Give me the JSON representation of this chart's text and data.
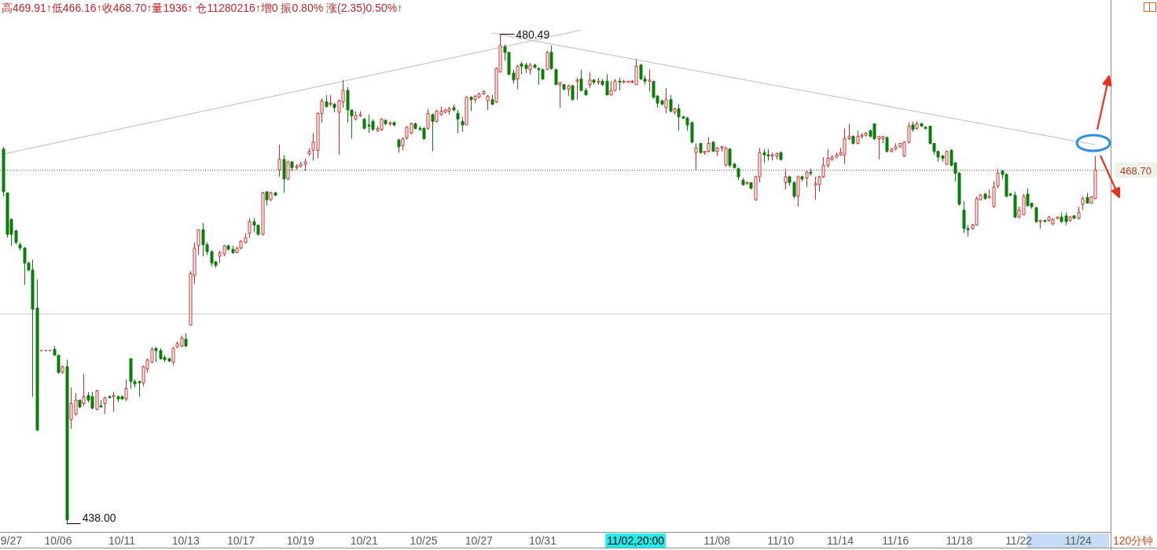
{
  "chart_data": {
    "type": "candlestick",
    "title": "高469.91↑低466.16↑收468.70↑量1936↑ 仓11280216↑增0 振0.80% 涨(2.35)0.50%↑",
    "categories": [
      null,
      null,
      "9/27",
      null,
      null,
      null,
      null,
      null,
      null,
      null,
      null,
      null,
      null,
      "10/06",
      null,
      null,
      null,
      null,
      null,
      null,
      null,
      null,
      null,
      null,
      null,
      null,
      null,
      null,
      "10/11",
      null,
      null,
      null,
      null,
      null,
      null,
      null,
      null,
      null,
      null,
      null,
      null,
      null,
      null,
      "10/13",
      null,
      null,
      null,
      null,
      null,
      null,
      null,
      null,
      null,
      null,
      null,
      null,
      "10/17",
      null,
      null,
      null,
      null,
      null,
      null,
      null,
      null,
      null,
      null,
      null,
      null,
      null,
      "10/19",
      null,
      null,
      null,
      null,
      null,
      null,
      null,
      null,
      null,
      null,
      null,
      null,
      null,
      null,
      "10/21",
      null,
      null,
      null,
      null,
      null,
      null,
      null,
      null,
      null,
      null,
      null,
      null,
      null,
      "10/25",
      null,
      null,
      null,
      null,
      null,
      null,
      null,
      null,
      null,
      null,
      null,
      null,
      "10/27",
      null,
      null,
      null,
      null,
      null,
      null,
      null,
      null,
      null,
      null,
      null,
      null,
      null,
      null,
      "10/31",
      null,
      null,
      null,
      null,
      null,
      null,
      null,
      null,
      null,
      null,
      null,
      null,
      null,
      null,
      null,
      null,
      null,
      null,
      null,
      null,
      null,
      null,
      null,
      null,
      null,
      null,
      null,
      null,
      null,
      null,
      null,
      null,
      null,
      null,
      null,
      null,
      null,
      null,
      null,
      null,
      "11/08",
      null,
      null,
      null,
      null,
      null,
      null,
      null,
      null,
      null,
      null,
      null,
      null,
      null,
      null,
      "11/10",
      null,
      null,
      null,
      null,
      null,
      null,
      null,
      null,
      null,
      null,
      null,
      null,
      null,
      "11/14",
      null,
      null,
      null,
      null,
      null,
      null,
      null,
      null,
      null,
      null,
      null,
      null,
      "11/16",
      null,
      null,
      null,
      null,
      null,
      null,
      null,
      null,
      null,
      null,
      null,
      null,
      null,
      null,
      "11/18",
      null,
      null,
      null,
      null,
      null,
      null,
      null,
      null,
      null,
      null,
      null,
      null,
      null,
      "11/22",
      null,
      null,
      null,
      null,
      null,
      null,
      null,
      null,
      null,
      null,
      null,
      null,
      null,
      "11/24",
      null,
      null,
      null,
      null
    ],
    "ohlc": [
      [
        470.5,
        470.7,
        466.4,
        466.8
      ],
      [
        466.7,
        466.7,
        462.8,
        463.1
      ],
      [
        464.4,
        464.5,
        462.1,
        463.1
      ],
      [
        463.4,
        463.5,
        462.2,
        462.4
      ],
      [
        462.2,
        462.4,
        461.7,
        461.9
      ],
      [
        461.9,
        462.0,
        458.7,
        460.6
      ],
      [
        460.6,
        460.7,
        459.9,
        460.0
      ],
      [
        460.0,
        460.9,
        449.0,
        456.6
      ],
      [
        456.7,
        459.2,
        446.0,
        446.1
      ],
      [
        453.0,
        453.0,
        453.0,
        453.0
      ],
      [
        453.0,
        453.0,
        453.0,
        453.0
      ],
      [
        453.0,
        453.0,
        453.0,
        453.0
      ],
      [
        453.1,
        453.4,
        452.6,
        452.6
      ],
      [
        452.6,
        452.6,
        451.0,
        451.1
      ],
      [
        451.1,
        451.7,
        451.0,
        451.6
      ],
      [
        451.6,
        452.2,
        438.0,
        438.3
      ],
      [
        447.0,
        449.8,
        446.2,
        448.4
      ],
      [
        447.5,
        449.3,
        447.3,
        448.7
      ],
      [
        448.7,
        448.7,
        448.0,
        448.1
      ],
      [
        448.4,
        451.0,
        448.2,
        449.0
      ],
      [
        449.1,
        449.4,
        448.5,
        448.7
      ],
      [
        449.0,
        449.4,
        447.9,
        448.0
      ],
      [
        447.9,
        449.6,
        447.8,
        449.5
      ],
      [
        448.2,
        448.7,
        448.1,
        448.1
      ],
      [
        448.4,
        449.0,
        447.5,
        448.9
      ],
      [
        449.0,
        449.1,
        448.9,
        448.9
      ],
      [
        449.0,
        449.4,
        447.7,
        449.1
      ],
      [
        449.0,
        449.1,
        448.5,
        448.8
      ],
      [
        449.0,
        449.1,
        448.7,
        448.8
      ],
      [
        448.8,
        450.5,
        448.6,
        449.7
      ],
      [
        452.3,
        452.3,
        449.7,
        450.3
      ],
      [
        450.3,
        450.5,
        449.8,
        450.1
      ],
      [
        450.3,
        450.4,
        449.0,
        450.2
      ],
      [
        450.2,
        451.7,
        449.9,
        451.6
      ],
      [
        451.4,
        452.3,
        451.1,
        452.2
      ],
      [
        452.0,
        453.3,
        451.9,
        453.1
      ],
      [
        453.2,
        453.3,
        452.0,
        453.0
      ],
      [
        453.0,
        453.2,
        452.2,
        452.3
      ],
      [
        452.4,
        452.6,
        452.0,
        452.2
      ],
      [
        452.3,
        452.4,
        452.0,
        452.1
      ],
      [
        452.0,
        453.3,
        451.7,
        453.2
      ],
      [
        453.3,
        453.8,
        453.2,
        453.6
      ],
      [
        453.4,
        454.3,
        453.3,
        454.1
      ],
      [
        454.0,
        454.5,
        453.3,
        453.4
      ],
      [
        455.2,
        459.9,
        455.2,
        459.7
      ],
      [
        459.5,
        462.4,
        458.8,
        461.9
      ],
      [
        462.1,
        463.5,
        461.3,
        463.5
      ],
      [
        463.5,
        464.1,
        461.2,
        462.2
      ],
      [
        462.2,
        462.4,
        461.3,
        461.6
      ],
      [
        461.6,
        461.7,
        460.3,
        460.6
      ],
      [
        460.7,
        460.8,
        460.2,
        460.4
      ],
      [
        461.2,
        461.7,
        460.6,
        461.5
      ],
      [
        461.4,
        462.2,
        461.2,
        462.1
      ],
      [
        462.1,
        462.2,
        461.7,
        461.8
      ],
      [
        461.8,
        462.1,
        461.4,
        461.5
      ],
      [
        461.5,
        462.0,
        461.5,
        461.9
      ],
      [
        461.9,
        462.6,
        461.8,
        462.5
      ],
      [
        462.4,
        463.2,
        462.3,
        462.8
      ],
      [
        463.2,
        464.5,
        462.8,
        464.2
      ],
      [
        464.2,
        464.5,
        463.3,
        463.9
      ],
      [
        463.9,
        463.9,
        463.0,
        463.1
      ],
      [
        463.1,
        466.8,
        463.0,
        466.7
      ],
      [
        466.8,
        466.8,
        465.6,
        466.1
      ],
      [
        466.1,
        466.8,
        466.0,
        466.7
      ],
      [
        466.7,
        466.8,
        466.4,
        466.5
      ],
      [
        468.7,
        470.9,
        468.1,
        469.6
      ],
      [
        469.6,
        470.0,
        466.7,
        467.9
      ],
      [
        467.9,
        469.5,
        467.8,
        469.4
      ],
      [
        469.4,
        469.4,
        468.6,
        468.9
      ],
      [
        468.9,
        469.2,
        468.7,
        469.0
      ],
      [
        469.0,
        469.4,
        468.9,
        469.2
      ],
      [
        469.2,
        469.7,
        468.6,
        469.4
      ],
      [
        470.1,
        470.6,
        469.9,
        470.3
      ],
      [
        470.4,
        471.9,
        469.5,
        471.1
      ],
      [
        470.4,
        473.7,
        469.7,
        473.6
      ],
      [
        473.6,
        474.9,
        472.8,
        474.7
      ],
      [
        474.6,
        475.2,
        474.1,
        474.2
      ],
      [
        474.4,
        475.2,
        474.2,
        474.5
      ],
      [
        474.4,
        474.5,
        473.7,
        474.1
      ],
      [
        473.7,
        474.8,
        470.0,
        474.7
      ],
      [
        474.6,
        476.5,
        474.1,
        475.6
      ],
      [
        475.6,
        475.9,
        472.8,
        473.9
      ],
      [
        473.9,
        473.9,
        471.4,
        473.4
      ],
      [
        473.1,
        473.8,
        473.0,
        473.4
      ],
      [
        473.4,
        473.8,
        473.3,
        473.5
      ],
      [
        473.1,
        473.2,
        472.2,
        472.3
      ],
      [
        472.6,
        473.5,
        471.9,
        472.5
      ],
      [
        472.9,
        473.1,
        472.1,
        472.2
      ],
      [
        472.1,
        472.5,
        472.0,
        472.3
      ],
      [
        472.2,
        473.2,
        472.1,
        473.1
      ],
      [
        473.0,
        473.1,
        472.6,
        472.7
      ],
      [
        472.7,
        472.9,
        472.5,
        472.8
      ],
      [
        472.8,
        472.9,
        472.5,
        472.6
      ],
      [
        471.3,
        471.4,
        470.2,
        470.7
      ],
      [
        470.8,
        471.5,
        470.4,
        471.4
      ],
      [
        471.5,
        472.5,
        471.3,
        472.4
      ],
      [
        471.9,
        472.8,
        471.8,
        472.7
      ],
      [
        472.7,
        472.8,
        472.2,
        472.3
      ],
      [
        472.3,
        472.5,
        472.1,
        472.2
      ],
      [
        472.3,
        472.4,
        471.3,
        471.4
      ],
      [
        472.3,
        474.0,
        472.2,
        473.6
      ],
      [
        473.5,
        473.6,
        470.3,
        472.9
      ],
      [
        472.9,
        473.9,
        472.8,
        473.8
      ],
      [
        473.5,
        474.2,
        473.4,
        473.8
      ],
      [
        473.7,
        474.0,
        473.6,
        473.9
      ],
      [
        473.8,
        474.2,
        473.5,
        474.0
      ],
      [
        474.1,
        474.4,
        473.8,
        473.9
      ],
      [
        473.6,
        473.9,
        471.9,
        473.1
      ],
      [
        472.9,
        473.3,
        472.0,
        472.6
      ],
      [
        472.6,
        475.1,
        472.6,
        475.0
      ],
      [
        475.0,
        475.1,
        473.8,
        474.8
      ],
      [
        474.8,
        475.2,
        474.5,
        475.1
      ],
      [
        475.0,
        475.4,
        474.9,
        475.3
      ],
      [
        475.3,
        475.6,
        475.2,
        475.5
      ],
      [
        474.7,
        475.2,
        473.9,
        475.1
      ],
      [
        474.8,
        475.2,
        474.3,
        474.4
      ],
      [
        474.6,
        477.6,
        474.5,
        477.5
      ],
      [
        477.2,
        480.49,
        477.2,
        479.5
      ],
      [
        479.4,
        479.6,
        478.2,
        478.9
      ],
      [
        478.9,
        478.9,
        476.9,
        477.0
      ],
      [
        477.1,
        477.4,
        476.2,
        476.5
      ],
      [
        476.6,
        477.8,
        475.7,
        477.7
      ],
      [
        477.9,
        478.1,
        477.0,
        477.7
      ],
      [
        477.8,
        478.0,
        477.1,
        477.5
      ],
      [
        477.4,
        478.0,
        477.0,
        477.8
      ],
      [
        477.8,
        477.9,
        477.5,
        477.6
      ],
      [
        477.5,
        477.6,
        476.1,
        477.4
      ],
      [
        477.4,
        477.5,
        476.5,
        476.6
      ],
      [
        477.4,
        479.0,
        477.4,
        478.9
      ],
      [
        478.9,
        479.5,
        477.4,
        477.5
      ],
      [
        477.4,
        477.5,
        476.1,
        476.1
      ],
      [
        476.1,
        476.3,
        474.1,
        476.3
      ],
      [
        476.1,
        476.1,
        475.6,
        475.7
      ],
      [
        475.7,
        476.1,
        475.1,
        476.0
      ],
      [
        476.0,
        476.1,
        474.7,
        474.8
      ],
      [
        476.4,
        476.7,
        474.8,
        476.5
      ],
      [
        476.6,
        477.4,
        475.5,
        475.6
      ],
      [
        475.6,
        475.8,
        475.2,
        475.2
      ],
      [
        476.1,
        477.2,
        475.8,
        476.5
      ],
      [
        476.5,
        476.6,
        476.1,
        476.3
      ],
      [
        476.3,
        476.7,
        476.1,
        476.4
      ],
      [
        476.4,
        476.6,
        476.0,
        476.1
      ],
      [
        476.4,
        477.0,
        475.2,
        475.2
      ],
      [
        475.2,
        476.4,
        475.2,
        475.6
      ],
      [
        475.6,
        476.6,
        475.5,
        476.4
      ],
      [
        476.4,
        476.7,
        475.6,
        476.3
      ],
      [
        476.3,
        476.5,
        476.2,
        476.4
      ],
      [
        476.3,
        476.4,
        476.3,
        476.4
      ],
      [
        476.3,
        476.5,
        476.2,
        476.4
      ],
      [
        476.1,
        478.3,
        476.1,
        477.7
      ],
      [
        477.8,
        477.9,
        476.5,
        476.6
      ],
      [
        476.6,
        476.9,
        476.1,
        476.4
      ],
      [
        476.4,
        477.4,
        475.5,
        476.5
      ],
      [
        476.4,
        476.4,
        474.9,
        475.0
      ],
      [
        475.1,
        475.2,
        474.1,
        474.5
      ],
      [
        474.7,
        474.8,
        474.3,
        474.4
      ],
      [
        474.1,
        475.8,
        473.6,
        474.8
      ],
      [
        474.8,
        475.2,
        473.7,
        473.8
      ],
      [
        473.7,
        474.1,
        473.5,
        474.0
      ],
      [
        474.0,
        474.4,
        472.1,
        473.3
      ],
      [
        473.3,
        473.4,
        473.1,
        473.2
      ],
      [
        473.2,
        473.3,
        472.1,
        472.6
      ],
      [
        472.8,
        472.9,
        471.0,
        471.1
      ],
      [
        470.2,
        471.0,
        468.7,
        470.6
      ],
      [
        471.0,
        471.0,
        470.1,
        470.2
      ],
      [
        470.2,
        470.3,
        470.0,
        470.3
      ],
      [
        470.3,
        471.5,
        470.2,
        471.0
      ],
      [
        471.1,
        471.2,
        470.3,
        470.3
      ],
      [
        470.3,
        470.7,
        469.9,
        470.6
      ],
      [
        470.6,
        470.8,
        470.3,
        470.7
      ],
      [
        469.1,
        470.7,
        469.0,
        470.6
      ],
      [
        470.5,
        470.6,
        468.9,
        469.1
      ],
      [
        469.2,
        469.3,
        468.8,
        468.9
      ],
      [
        468.8,
        468.9,
        467.8,
        468.1
      ],
      [
        467.8,
        468.0,
        467.4,
        467.4
      ],
      [
        467.5,
        467.7,
        467.4,
        467.6
      ],
      [
        467.6,
        467.6,
        467.0,
        467.1
      ],
      [
        466.1,
        468.2,
        466.0,
        468.1
      ],
      [
        468.1,
        470.6,
        467.6,
        470.2
      ],
      [
        470.2,
        470.5,
        469.3,
        470.0
      ],
      [
        470.0,
        470.5,
        469.5,
        469.9
      ],
      [
        469.9,
        470.2,
        469.5,
        470.0
      ],
      [
        469.9,
        470.2,
        469.6,
        470.1
      ],
      [
        470.2,
        470.3,
        469.5,
        469.6
      ],
      [
        467.6,
        468.8,
        467.0,
        468.1
      ],
      [
        468.1,
        468.2,
        467.3,
        467.6
      ],
      [
        467.6,
        467.7,
        466.2,
        466.4
      ],
      [
        466.4,
        468.2,
        465.5,
        468.1
      ],
      [
        468.1,
        468.2,
        467.7,
        467.9
      ],
      [
        468.0,
        468.7,
        467.2,
        468.5
      ],
      [
        468.5,
        468.8,
        468.2,
        468.4
      ],
      [
        467.4,
        468.1,
        466.1,
        467.5
      ],
      [
        467.4,
        468.2,
        466.8,
        468.1
      ],
      [
        468.1,
        469.8,
        468.0,
        469.1
      ],
      [
        469.1,
        470.5,
        468.9,
        469.7
      ],
      [
        469.6,
        470.0,
        469.5,
        469.8
      ],
      [
        469.8,
        470.2,
        469.7,
        470.0
      ],
      [
        470.0,
        470.6,
        469.9,
        470.2
      ],
      [
        470.0,
        472.3,
        469.2,
        471.4
      ],
      [
        471.4,
        472.7,
        471.3,
        471.6
      ],
      [
        471.6,
        471.7,
        470.9,
        471.0
      ],
      [
        471.0,
        472.1,
        470.9,
        471.6
      ],
      [
        471.6,
        471.9,
        471.4,
        471.7
      ],
      [
        471.7,
        472.0,
        471.6,
        471.9
      ],
      [
        472.1,
        472.2,
        471.5,
        471.6
      ],
      [
        472.7,
        472.7,
        471.3,
        471.4
      ],
      [
        471.4,
        471.6,
        469.6,
        471.6
      ],
      [
        471.4,
        471.6,
        471.0,
        471.6
      ],
      [
        471.5,
        471.6,
        470.2,
        470.3
      ],
      [
        470.3,
        470.6,
        470.2,
        470.5
      ],
      [
        470.5,
        471.0,
        470.4,
        470.7
      ],
      [
        470.7,
        471.0,
        470.6,
        471.0
      ],
      [
        469.9,
        471.2,
        469.8,
        471.1
      ],
      [
        471.1,
        472.8,
        471.0,
        472.5
      ],
      [
        472.6,
        472.9,
        472.0,
        472.2
      ],
      [
        472.3,
        472.9,
        472.2,
        472.7
      ],
      [
        472.7,
        472.8,
        472.4,
        472.5
      ],
      [
        472.4,
        472.5,
        472.2,
        472.3
      ],
      [
        472.5,
        472.5,
        470.9,
        471.0
      ],
      [
        471.0,
        471.0,
        470.0,
        470.3
      ],
      [
        470.3,
        470.4,
        469.4,
        469.8
      ],
      [
        469.9,
        470.0,
        469.4,
        469.7
      ],
      [
        469.2,
        470.4,
        469.1,
        470.3
      ],
      [
        470.4,
        470.5,
        469.0,
        469.1
      ],
      [
        469.3,
        469.4,
        467.7,
        468.4
      ],
      [
        468.4,
        468.5,
        465.6,
        465.7
      ],
      [
        465.2,
        466.0,
        463.2,
        463.6
      ],
      [
        463.6,
        463.9,
        462.9,
        463.5
      ],
      [
        463.6,
        464.0,
        463.5,
        463.9
      ],
      [
        463.9,
        466.4,
        463.9,
        466.2
      ],
      [
        466.1,
        466.6,
        466.1,
        466.5
      ],
      [
        466.6,
        466.7,
        466.1,
        466.2
      ],
      [
        466.3,
        467.0,
        466.2,
        466.4
      ],
      [
        465.5,
        467.7,
        465.4,
        467.2
      ],
      [
        467.3,
        468.8,
        467.1,
        468.4
      ],
      [
        468.6,
        468.7,
        467.9,
        468.3
      ],
      [
        468.3,
        468.4,
        466.3,
        466.4
      ],
      [
        466.6,
        466.7,
        466.4,
        466.5
      ],
      [
        466.5,
        466.8,
        464.5,
        464.6
      ],
      [
        464.6,
        465.5,
        464.5,
        465.2
      ],
      [
        464.8,
        466.6,
        464.8,
        466.4
      ],
      [
        466.6,
        467.1,
        465.5,
        465.6
      ],
      [
        465.8,
        465.8,
        465.3,
        465.5
      ],
      [
        465.4,
        465.5,
        464.1,
        464.2
      ],
      [
        464.2,
        464.4,
        463.6,
        464.3
      ],
      [
        464.3,
        464.4,
        464.2,
        464.2
      ],
      [
        464.3,
        464.7,
        464.2,
        464.6
      ],
      [
        464.0,
        464.5,
        463.9,
        464.4
      ],
      [
        464.5,
        464.6,
        464.4,
        464.6
      ],
      [
        464.6,
        465.0,
        464.1,
        464.2
      ],
      [
        464.7,
        465.0,
        463.9,
        464.2
      ],
      [
        464.3,
        464.7,
        464.2,
        464.6
      ],
      [
        464.7,
        464.8,
        464.4,
        464.5
      ],
      [
        464.5,
        465.5,
        464.4,
        465.0
      ],
      [
        465.7,
        466.4,
        465.2,
        466.2
      ],
      [
        466.3,
        466.7,
        465.8,
        465.8
      ],
      [
        465.8,
        466.4,
        465.8,
        466.35
      ],
      [
        466.2,
        469.91,
        466.16,
        468.7
      ]
    ],
    "colors": [
      "#0b7d0b",
      "#0b7d0b",
      "#0b7d0b",
      "#0b7d0b",
      "#0b7d0b",
      "#0b7d0b",
      "#0b7d0b",
      "#0b7d0b",
      "#0b7d0b",
      "#d62b2b",
      "#d62b2b",
      "#d62b2b",
      "#0b7d0b",
      "#0b7d0b",
      "#d62b2b",
      "#0b7d0b",
      "#d62b2b",
      "#d62b2b",
      "#0b7d0b",
      "#d62b2b",
      "#0b7d0b",
      "#0b7d0b",
      "#d62b2b",
      "#0b7d0b",
      "#d62b2b",
      "#0b7d0b",
      "#d62b2b",
      "#0b7d0b",
      "#0b7d0b",
      "#d62b2b",
      "#0b7d0b",
      "#0b7d0b",
      "#0b7d0b",
      "#d62b2b",
      "#d62b2b",
      "#d62b2b",
      "#0b7d0b",
      "#0b7d0b",
      "#0b7d0b",
      "#0b7d0b",
      "#d62b2b",
      "#d62b2b",
      "#d62b2b",
      "#0b7d0b",
      "#d62b2b",
      "#d62b2b",
      "#d62b2b",
      "#0b7d0b",
      "#0b7d0b",
      "#0b7d0b",
      "#0b7d0b",
      "#d62b2b",
      "#d62b2b",
      "#0b7d0b",
      "#0b7d0b",
      "#d62b2b",
      "#d62b2b",
      "#d62b2b",
      "#d62b2b",
      "#0b7d0b",
      "#0b7d0b",
      "#d62b2b",
      "#0b7d0b",
      "#d62b2b",
      "#0b7d0b",
      "#d62b2b",
      "#0b7d0b",
      "#d62b2b",
      "#0b7d0b",
      "#d62b2b",
      "#d62b2b",
      "#d62b2b",
      "#d62b2b",
      "#d62b2b",
      "#d62b2b",
      "#d62b2b",
      "#0b7d0b",
      "#d62b2b",
      "#0b7d0b",
      "#d62b2b",
      "#d62b2b",
      "#0b7d0b",
      "#0b7d0b",
      "#d62b2b",
      "#d62b2b",
      "#0b7d0b",
      "#0b7d0b",
      "#0b7d0b",
      "#d62b2b",
      "#d62b2b",
      "#0b7d0b",
      "#d62b2b",
      "#0b7d0b",
      "#0b7d0b",
      "#d62b2b",
      "#d62b2b",
      "#d62b2b",
      "#0b7d0b",
      "#0b7d0b",
      "#0b7d0b",
      "#d62b2b",
      "#0b7d0b",
      "#d62b2b",
      "#d62b2b",
      "#d62b2b",
      "#d62b2b",
      "#0b7d0b",
      "#0b7d0b",
      "#0b7d0b",
      "#d62b2b",
      "#0b7d0b",
      "#d62b2b",
      "#d62b2b",
      "#d62b2b",
      "#d62b2b",
      "#0b7d0b",
      "#d62b2b",
      "#d62b2b",
      "#0b7d0b",
      "#0b7d0b",
      "#0b7d0b",
      "#d62b2b",
      "#0b7d0b",
      "#0b7d0b",
      "#d62b2b",
      "#0b7d0b",
      "#0b7d0b",
      "#0b7d0b",
      "#d62b2b",
      "#0b7d0b",
      "#0b7d0b",
      "#d62b2b",
      "#0b7d0b",
      "#d62b2b",
      "#0b7d0b",
      "#d62b2b",
      "#0b7d0b",
      "#0b7d0b",
      "#d62b2b",
      "#0b7d0b",
      "#d62b2b",
      "#0b7d0b",
      "#0b7d0b",
      "#d62b2b",
      "#d62b2b",
      "#0b7d0b",
      "#d62b2b",
      "#d62b2b",
      "#d62b2b",
      "#d62b2b",
      "#0b7d0b",
      "#0b7d0b",
      "#d62b2b",
      "#0b7d0b",
      "#0b7d0b",
      "#0b7d0b",
      "#d62b2b",
      "#0b7d0b",
      "#d62b2b",
      "#0b7d0b",
      "#0b7d0b",
      "#0b7d0b",
      "#0b7d0b",
      "#d62b2b",
      "#0b7d0b",
      "#d62b2b",
      "#d62b2b",
      "#0b7d0b",
      "#d62b2b",
      "#d62b2b",
      "#d62b2b",
      "#0b7d0b",
      "#0b7d0b",
      "#0b7d0b",
      "#0b7d0b",
      "#d62b2b",
      "#0b7d0b",
      "#d62b2b",
      "#d62b2b",
      "#0b7d0b",
      "#0b7d0b",
      "#d62b2b",
      "#d62b2b",
      "#0b7d0b",
      "#d62b2b",
      "#0b7d0b",
      "#0b7d0b",
      "#d62b2b",
      "#0b7d0b",
      "#d62b2b",
      "#0b7d0b",
      "#d62b2b",
      "#d62b2b",
      "#d62b2b",
      "#d62b2b",
      "#d62b2b",
      "#d62b2b",
      "#d62b2b",
      "#d62b2b",
      "#d62b2b",
      "#0b7d0b",
      "#d62b2b",
      "#d62b2b",
      "#d62b2b",
      "#0b7d0b",
      "#0b7d0b",
      "#d62b2b",
      "#d62b2b",
      "#0b7d0b",
      "#d62b2b",
      "#d62b2b",
      "#d62b2b",
      "#d62b2b",
      "#d62b2b",
      "#0b7d0b",
      "#d62b2b",
      "#0b7d0b",
      "#0b7d0b",
      "#0b7d0b",
      "#0b7d0b",
      "#0b7d0b",
      "#0b7d0b",
      "#d62b2b",
      "#0b7d0b",
      "#0b7d0b",
      "#0b7d0b",
      "#0b7d0b",
      "#0b7d0b",
      "#d62b2b",
      "#d62b2b",
      "#d62b2b",
      "#0b7d0b",
      "#d62b2b",
      "#d62b2b",
      "#d62b2b",
      "#0b7d0b",
      "#0b7d0b",
      "#0b7d0b",
      "#0b7d0b",
      "#d62b2b",
      "#d62b2b",
      "#0b7d0b",
      "#0b7d0b",
      "#0b7d0b",
      "#d62b2b",
      "#0b7d0b",
      "#d62b2b",
      "#d62b2b",
      "#d62b2b",
      "#0b7d0b",
      "#0b7d0b",
      "#d62b2b",
      "#0b7d0b",
      "#d62b2b",
      "#d62b2b",
      "#0b7d0b",
      "#d62b2b",
      "#d62b2b"
    ],
    "series": [
      {
        "type": "line",
        "color": "#bdbdbd",
        "values": [
          470.06,
          null,
          null,
          null,
          null,
          null,
          null,
          null,
          null,
          null,
          null,
          null,
          null,
          null,
          null,
          null,
          null,
          null,
          null,
          null,
          null,
          null,
          null,
          null,
          null,
          null,
          null,
          null,
          null,
          null,
          null,
          null,
          null,
          null,
          null,
          null,
          null,
          null,
          null,
          null,
          null,
          null,
          null,
          null,
          null,
          null,
          null,
          null,
          null,
          null,
          null,
          null,
          null,
          null,
          null,
          null,
          null,
          null,
          null,
          null,
          null,
          null,
          null,
          null,
          null,
          null,
          null,
          null,
          null,
          null,
          null,
          null,
          null,
          null,
          null,
          null,
          null,
          null,
          null,
          null,
          null,
          null,
          null,
          null,
          null,
          null,
          null,
          null,
          null,
          null,
          null,
          null,
          null,
          null,
          null,
          null,
          null,
          null,
          null,
          null,
          null,
          null,
          null,
          null,
          null,
          null,
          null,
          null,
          null,
          null,
          null,
          null,
          null,
          null,
          null,
          null,
          null,
          null,
          null,
          null,
          null,
          null,
          null,
          null,
          null,
          null,
          null,
          null,
          null,
          null,
          null,
          null,
          null,
          null,
          null,
          null,
          480.83,
          null,
          null,
          null,
          null,
          null,
          null,
          null,
          null,
          null,
          null,
          null,
          null,
          null,
          null,
          null,
          null,
          null,
          null,
          null,
          null,
          null,
          null,
          null,
          null,
          null,
          null,
          null,
          null,
          null,
          null,
          null,
          null,
          null,
          null,
          null,
          null,
          null,
          null,
          null,
          null,
          null,
          null,
          null,
          null,
          null,
          null,
          null,
          null,
          null,
          null,
          null,
          null,
          null,
          null,
          null,
          null,
          null,
          null,
          null,
          null,
          null,
          null,
          null,
          null,
          null,
          null,
          null,
          null,
          null,
          null,
          null,
          null,
          null,
          null,
          null,
          null,
          null,
          null,
          null,
          null,
          null,
          null,
          null,
          null,
          null,
          null,
          null,
          null,
          null,
          null,
          null,
          null,
          null,
          null,
          null,
          null,
          null,
          null,
          null,
          null,
          null,
          null,
          null,
          null,
          null,
          null,
          null,
          null,
          null,
          null,
          null,
          null,
          null,
          null,
          null,
          null,
          null,
          null,
          null,
          null,
          null
        ]
      },
      {
        "type": "line",
        "color": "#bdbdbd",
        "values": [
          null,
          null,
          null,
          null,
          null,
          null,
          null,
          null,
          null,
          null,
          null,
          null,
          null,
          null,
          null,
          null,
          null,
          null,
          null,
          null,
          null,
          null,
          null,
          null,
          null,
          null,
          null,
          null,
          null,
          null,
          null,
          null,
          null,
          null,
          null,
          null,
          null,
          null,
          null,
          null,
          null,
          null,
          null,
          null,
          null,
          null,
          null,
          null,
          null,
          null,
          null,
          null,
          null,
          null,
          null,
          null,
          null,
          null,
          null,
          null,
          null,
          null,
          null,
          null,
          null,
          null,
          null,
          null,
          null,
          null,
          null,
          null,
          null,
          null,
          null,
          null,
          null,
          null,
          null,
          null,
          null,
          null,
          null,
          null,
          null,
          null,
          null,
          null,
          null,
          null,
          null,
          null,
          null,
          null,
          null,
          null,
          null,
          null,
          null,
          null,
          null,
          null,
          null,
          null,
          null,
          null,
          null,
          null,
          null,
          null,
          null,
          null,
          null,
          null,
          null,
          480.59,
          null,
          null,
          null,
          null,
          null,
          null,
          null,
          null,
          null,
          null,
          null,
          null,
          null,
          null,
          null,
          null,
          null,
          null,
          null,
          null,
          null,
          null,
          null,
          null,
          null,
          null,
          null,
          null,
          null,
          null,
          null,
          null,
          null,
          null,
          null,
          null,
          null,
          null,
          null,
          null,
          null,
          null,
          null,
          null,
          null,
          null,
          null,
          null,
          null,
          null,
          null,
          null,
          null,
          null,
          null,
          null,
          null,
          null,
          null,
          null,
          null,
          null,
          null,
          null,
          null,
          null,
          null,
          null,
          null,
          null,
          null,
          null,
          null,
          null,
          null,
          null,
          null,
          null,
          null,
          null,
          null,
          null,
          null,
          null,
          null,
          null,
          null,
          null,
          null,
          null,
          null,
          null,
          null,
          null,
          null,
          null,
          null,
          null,
          null,
          null,
          null,
          null,
          null,
          null,
          null,
          null,
          null,
          null,
          null,
          null,
          null,
          null,
          null,
          null,
          null,
          null,
          null,
          null,
          null,
          null,
          null,
          null,
          null,
          null,
          null,
          null,
          null,
          null,
          null,
          null,
          null,
          null,
          null,
          null,
          null,
          null,
          null,
          null,
          null,
          null,
          null,
          470.88
        ]
      }
    ],
    "ref_lines": [
      {
        "axis": "y",
        "value": 468.7,
        "label": "468.70",
        "color": "#555555",
        "line_style": "dotted"
      },
      {
        "axis": "y",
        "value": 456.2,
        "color": "#cccccc",
        "line_style": "solid"
      }
    ],
    "annotations": [
      "11/02,20:00",
      "120分钟",
      "480.49",
      "438.00"
    ],
    "tick_labels": "x"
  }
}
